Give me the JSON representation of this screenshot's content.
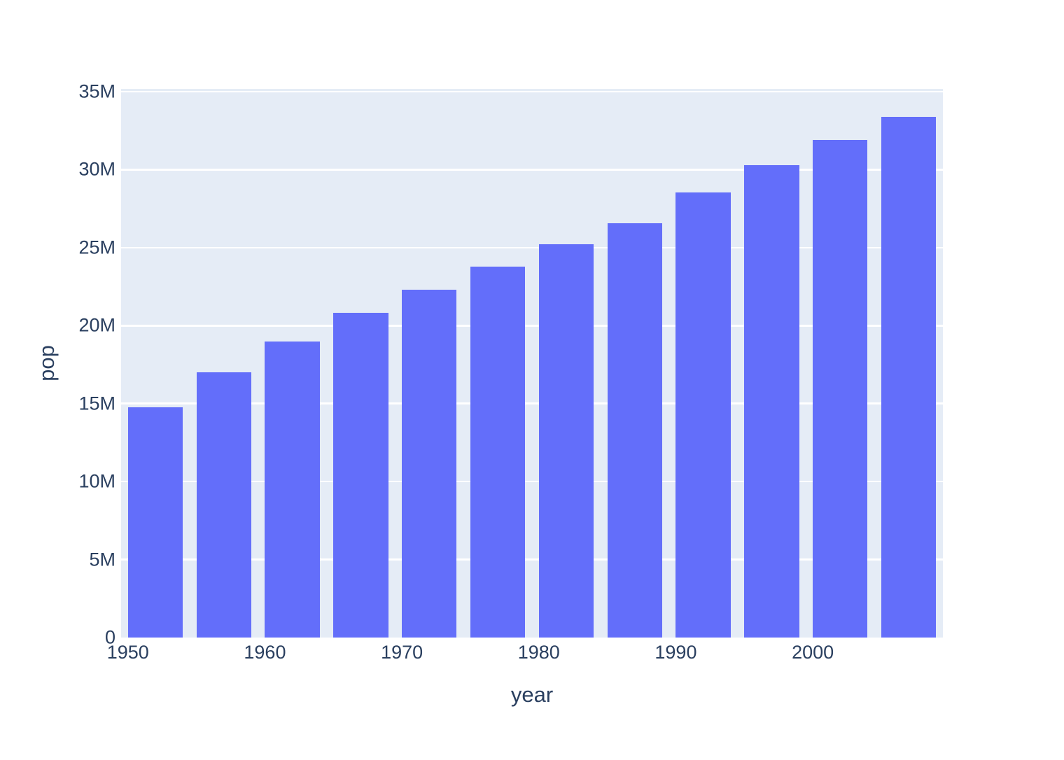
{
  "chart_data": {
    "type": "bar",
    "title": "",
    "xlabel": "year",
    "ylabel": "pop",
    "x": [
      1952,
      1957,
      1962,
      1967,
      1972,
      1977,
      1982,
      1987,
      1992,
      1997,
      2002,
      2007
    ],
    "values": [
      14785584,
      17010154,
      18985849,
      20819767,
      22284500,
      23796400,
      25201900,
      26549700,
      28523502,
      30305843,
      31902268,
      33390141
    ],
    "series": [
      {
        "name": "pop",
        "values": [
          14785584,
          17010154,
          18985849,
          20819767,
          22284500,
          23796400,
          25201900,
          26549700,
          28523502,
          30305843,
          31902268,
          33390141
        ]
      }
    ],
    "xlim": [
      1949.5,
      2009.5
    ],
    "ylim": [
      0,
      35000000
    ],
    "bar_width_x_units": 4,
    "grid": "horizontal-only",
    "legend": "none",
    "x_ticks": [
      {
        "value": 1950,
        "label": "1950"
      },
      {
        "value": 1960,
        "label": "1960"
      },
      {
        "value": 1970,
        "label": "1970"
      },
      {
        "value": 1980,
        "label": "1980"
      },
      {
        "value": 1990,
        "label": "1990"
      },
      {
        "value": 2000,
        "label": "2000"
      }
    ],
    "y_ticks": [
      {
        "value": 0,
        "label": "0"
      },
      {
        "value": 5000000,
        "label": "5M"
      },
      {
        "value": 10000000,
        "label": "10M"
      },
      {
        "value": 15000000,
        "label": "15M"
      },
      {
        "value": 20000000,
        "label": "20M"
      },
      {
        "value": 25000000,
        "label": "25M"
      },
      {
        "value": 30000000,
        "label": "30M"
      },
      {
        "value": 35000000,
        "label": "35M"
      }
    ],
    "colors": {
      "bar": "#636EFA",
      "plot_background": "#E5ECF6",
      "gridline": "#FFFFFF",
      "text": "#2A3F5F",
      "page_background": "#FFFFFF"
    }
  }
}
